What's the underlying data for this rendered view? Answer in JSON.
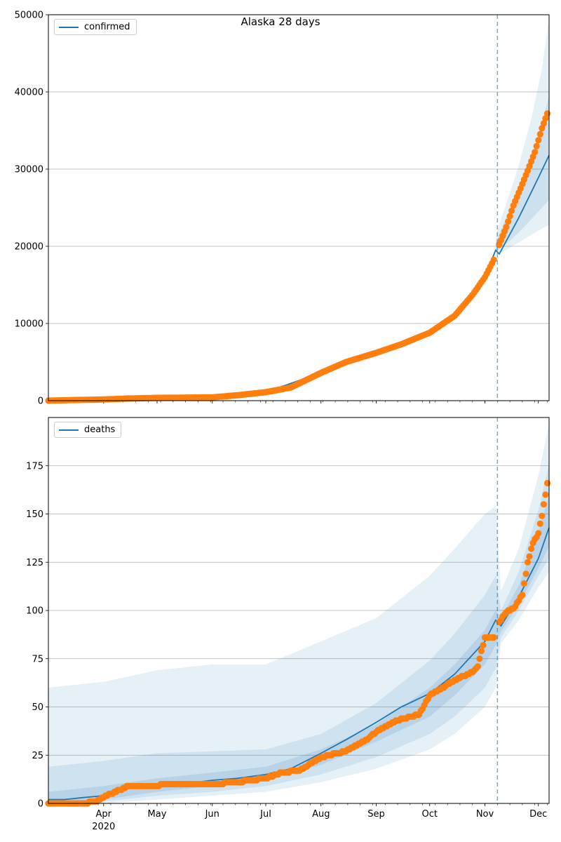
{
  "title": "Alaska 28 days",
  "colors": {
    "model": "#1f77b4",
    "observed": "#ff7f0e",
    "band": "#1f77b4",
    "grid": "#b0b0b0",
    "vline": "#1f77b4"
  },
  "chart_data": [
    {
      "type": "line",
      "legend": "confirmed",
      "legend_loc": "upper-left",
      "grid": "horizontal",
      "x_range": [
        "2020-03-01",
        "2020-12-07"
      ],
      "forecast_start": "2020-11-08",
      "ylim": [
        0,
        50000
      ],
      "yticks": [
        0,
        10000,
        20000,
        30000,
        40000,
        50000
      ],
      "observed": {
        "x": [
          "2020-03-01",
          "2020-03-15",
          "2020-04-01",
          "2020-04-15",
          "2020-05-01",
          "2020-05-15",
          "2020-06-01",
          "2020-06-15",
          "2020-07-01",
          "2020-07-15",
          "2020-08-01",
          "2020-08-15",
          "2020-09-01",
          "2020-09-15",
          "2020-10-01",
          "2020-10-15",
          "2020-10-25",
          "2020-11-01",
          "2020-11-07",
          "2020-11-09",
          "2020-11-13",
          "2020-11-17",
          "2020-11-21",
          "2020-11-25",
          "2020-11-29",
          "2020-12-03",
          "2020-12-06"
        ],
        "y": [
          0,
          80,
          150,
          280,
          360,
          390,
          430,
          700,
          1100,
          1700,
          3600,
          5000,
          6200,
          7300,
          8800,
          11000,
          13700,
          16000,
          18700,
          20200,
          22500,
          25300,
          27500,
          29800,
          32200,
          35300,
          37200
        ]
      },
      "model": {
        "x": [
          "2020-03-01",
          "2020-04-01",
          "2020-05-01",
          "2020-06-01",
          "2020-07-01",
          "2020-08-01",
          "2020-09-01",
          "2020-10-01",
          "2020-10-15",
          "2020-11-01",
          "2020-11-07",
          "2020-11-09",
          "2020-11-20",
          "2020-12-01",
          "2020-12-07"
        ],
        "y": [
          0,
          150,
          360,
          430,
          1100,
          3600,
          6200,
          8800,
          11000,
          16000,
          19500,
          19000,
          23700,
          28900,
          31800
        ]
      },
      "bands": {
        "x": [
          "2020-11-07",
          "2020-11-13",
          "2020-11-20",
          "2020-11-27",
          "2020-12-03",
          "2020-12-07"
        ],
        "outer_lo": [
          19000,
          19500,
          20500,
          21500,
          22300,
          22700
        ],
        "outer_hi": [
          21500,
          25500,
          30500,
          36500,
          43000,
          49500
        ],
        "inner_lo": [
          19300,
          20300,
          21800,
          23500,
          25000,
          26000
        ],
        "inner_hi": [
          20500,
          23800,
          27500,
          31500,
          36000,
          39500
        ]
      }
    },
    {
      "type": "line",
      "legend": "deaths",
      "legend_loc": "upper-left",
      "grid": "horizontal",
      "x_range": [
        "2020-03-01",
        "2020-12-07"
      ],
      "forecast_start": "2020-11-08",
      "ylim": [
        0,
        200
      ],
      "yticks": [
        0,
        25,
        50,
        75,
        100,
        125,
        150,
        175
      ],
      "xticks": [
        "Apr",
        "May",
        "Jun",
        "Jul",
        "Aug",
        "Sep",
        "Oct",
        "Nov",
        "Dec"
      ],
      "xtick_dates": [
        "2020-04-01",
        "2020-05-01",
        "2020-06-01",
        "2020-07-01",
        "2020-08-01",
        "2020-09-01",
        "2020-10-01",
        "2020-11-01",
        "2020-12-01"
      ],
      "x_year_label": "2020",
      "observed": {
        "x": [
          "2020-03-01",
          "2020-03-20",
          "2020-03-28",
          "2020-04-01",
          "2020-04-05",
          "2020-04-10",
          "2020-04-15",
          "2020-04-20",
          "2020-05-01",
          "2020-05-05",
          "2020-05-20",
          "2020-06-01",
          "2020-06-15",
          "2020-07-01",
          "2020-07-10",
          "2020-07-20",
          "2020-08-01",
          "2020-08-15",
          "2020-08-25",
          "2020-09-01",
          "2020-09-10",
          "2020-09-20",
          "2020-09-25",
          "2020-10-01",
          "2020-10-10",
          "2020-10-20",
          "2020-10-25",
          "2020-10-28",
          "2020-11-01",
          "2020-11-07",
          "2020-11-09",
          "2020-11-13",
          "2020-11-18",
          "2020-11-22",
          "2020-11-25",
          "2020-11-28",
          "2020-12-01",
          "2020-12-03",
          "2020-12-06"
        ],
        "y": [
          0,
          0,
          1,
          3,
          5,
          7,
          9,
          9,
          9,
          10,
          10,
          10,
          11,
          13,
          16,
          17,
          24,
          27,
          32,
          37,
          42,
          45,
          46,
          56,
          61,
          66,
          68,
          71,
          86,
          86,
          94,
          99,
          102,
          108,
          125,
          135,
          140,
          149,
          166
        ]
      },
      "model": {
        "x": [
          "2020-03-01",
          "2020-03-10",
          "2020-03-20",
          "2020-04-01",
          "2020-04-15",
          "2020-05-01",
          "2020-05-15",
          "2020-06-01",
          "2020-06-15",
          "2020-07-01",
          "2020-07-15",
          "2020-08-01",
          "2020-08-15",
          "2020-09-01",
          "2020-09-15",
          "2020-10-01",
          "2020-10-15",
          "2020-11-01",
          "2020-11-07",
          "2020-11-10",
          "2020-11-20",
          "2020-12-01",
          "2020-12-07"
        ],
        "y": [
          2,
          2,
          3,
          4,
          8,
          9,
          10,
          12,
          13,
          15,
          18,
          26,
          33,
          42,
          50,
          57,
          67,
          84,
          95,
          92,
          107,
          127,
          143
        ]
      },
      "bands": {
        "x": [
          "2020-03-01",
          "2020-04-01",
          "2020-05-01",
          "2020-06-01",
          "2020-07-01",
          "2020-08-01",
          "2020-09-01",
          "2020-10-01",
          "2020-10-15",
          "2020-11-01",
          "2020-11-07",
          "2020-11-10",
          "2020-11-20",
          "2020-12-01",
          "2020-12-07"
        ],
        "outer_lo": [
          0,
          0,
          2,
          4,
          6,
          11,
          18,
          28,
          36,
          50,
          60,
          83,
          95,
          112,
          120
        ],
        "outer_hi": [
          60,
          63,
          69,
          72,
          72,
          84,
          96,
          118,
          132,
          150,
          154,
          110,
          132,
          170,
          197
        ],
        "mid_lo": [
          0,
          1,
          4,
          6,
          9,
          15,
          24,
          36,
          45,
          60,
          70,
          86,
          100,
          118,
          127
        ],
        "mid_hi": [
          19,
          22,
          26,
          27,
          28,
          36,
          52,
          74,
          88,
          108,
          118,
          100,
          120,
          152,
          176
        ],
        "inner_lo": [
          1,
          2,
          6,
          9,
          12,
          20,
          32,
          45,
          56,
          72,
          82,
          89,
          103,
          122,
          133
        ],
        "inner_hi": [
          6,
          9,
          13,
          16,
          19,
          28,
          41,
          60,
          72,
          90,
          100,
          96,
          113,
          140,
          160
        ]
      }
    }
  ]
}
